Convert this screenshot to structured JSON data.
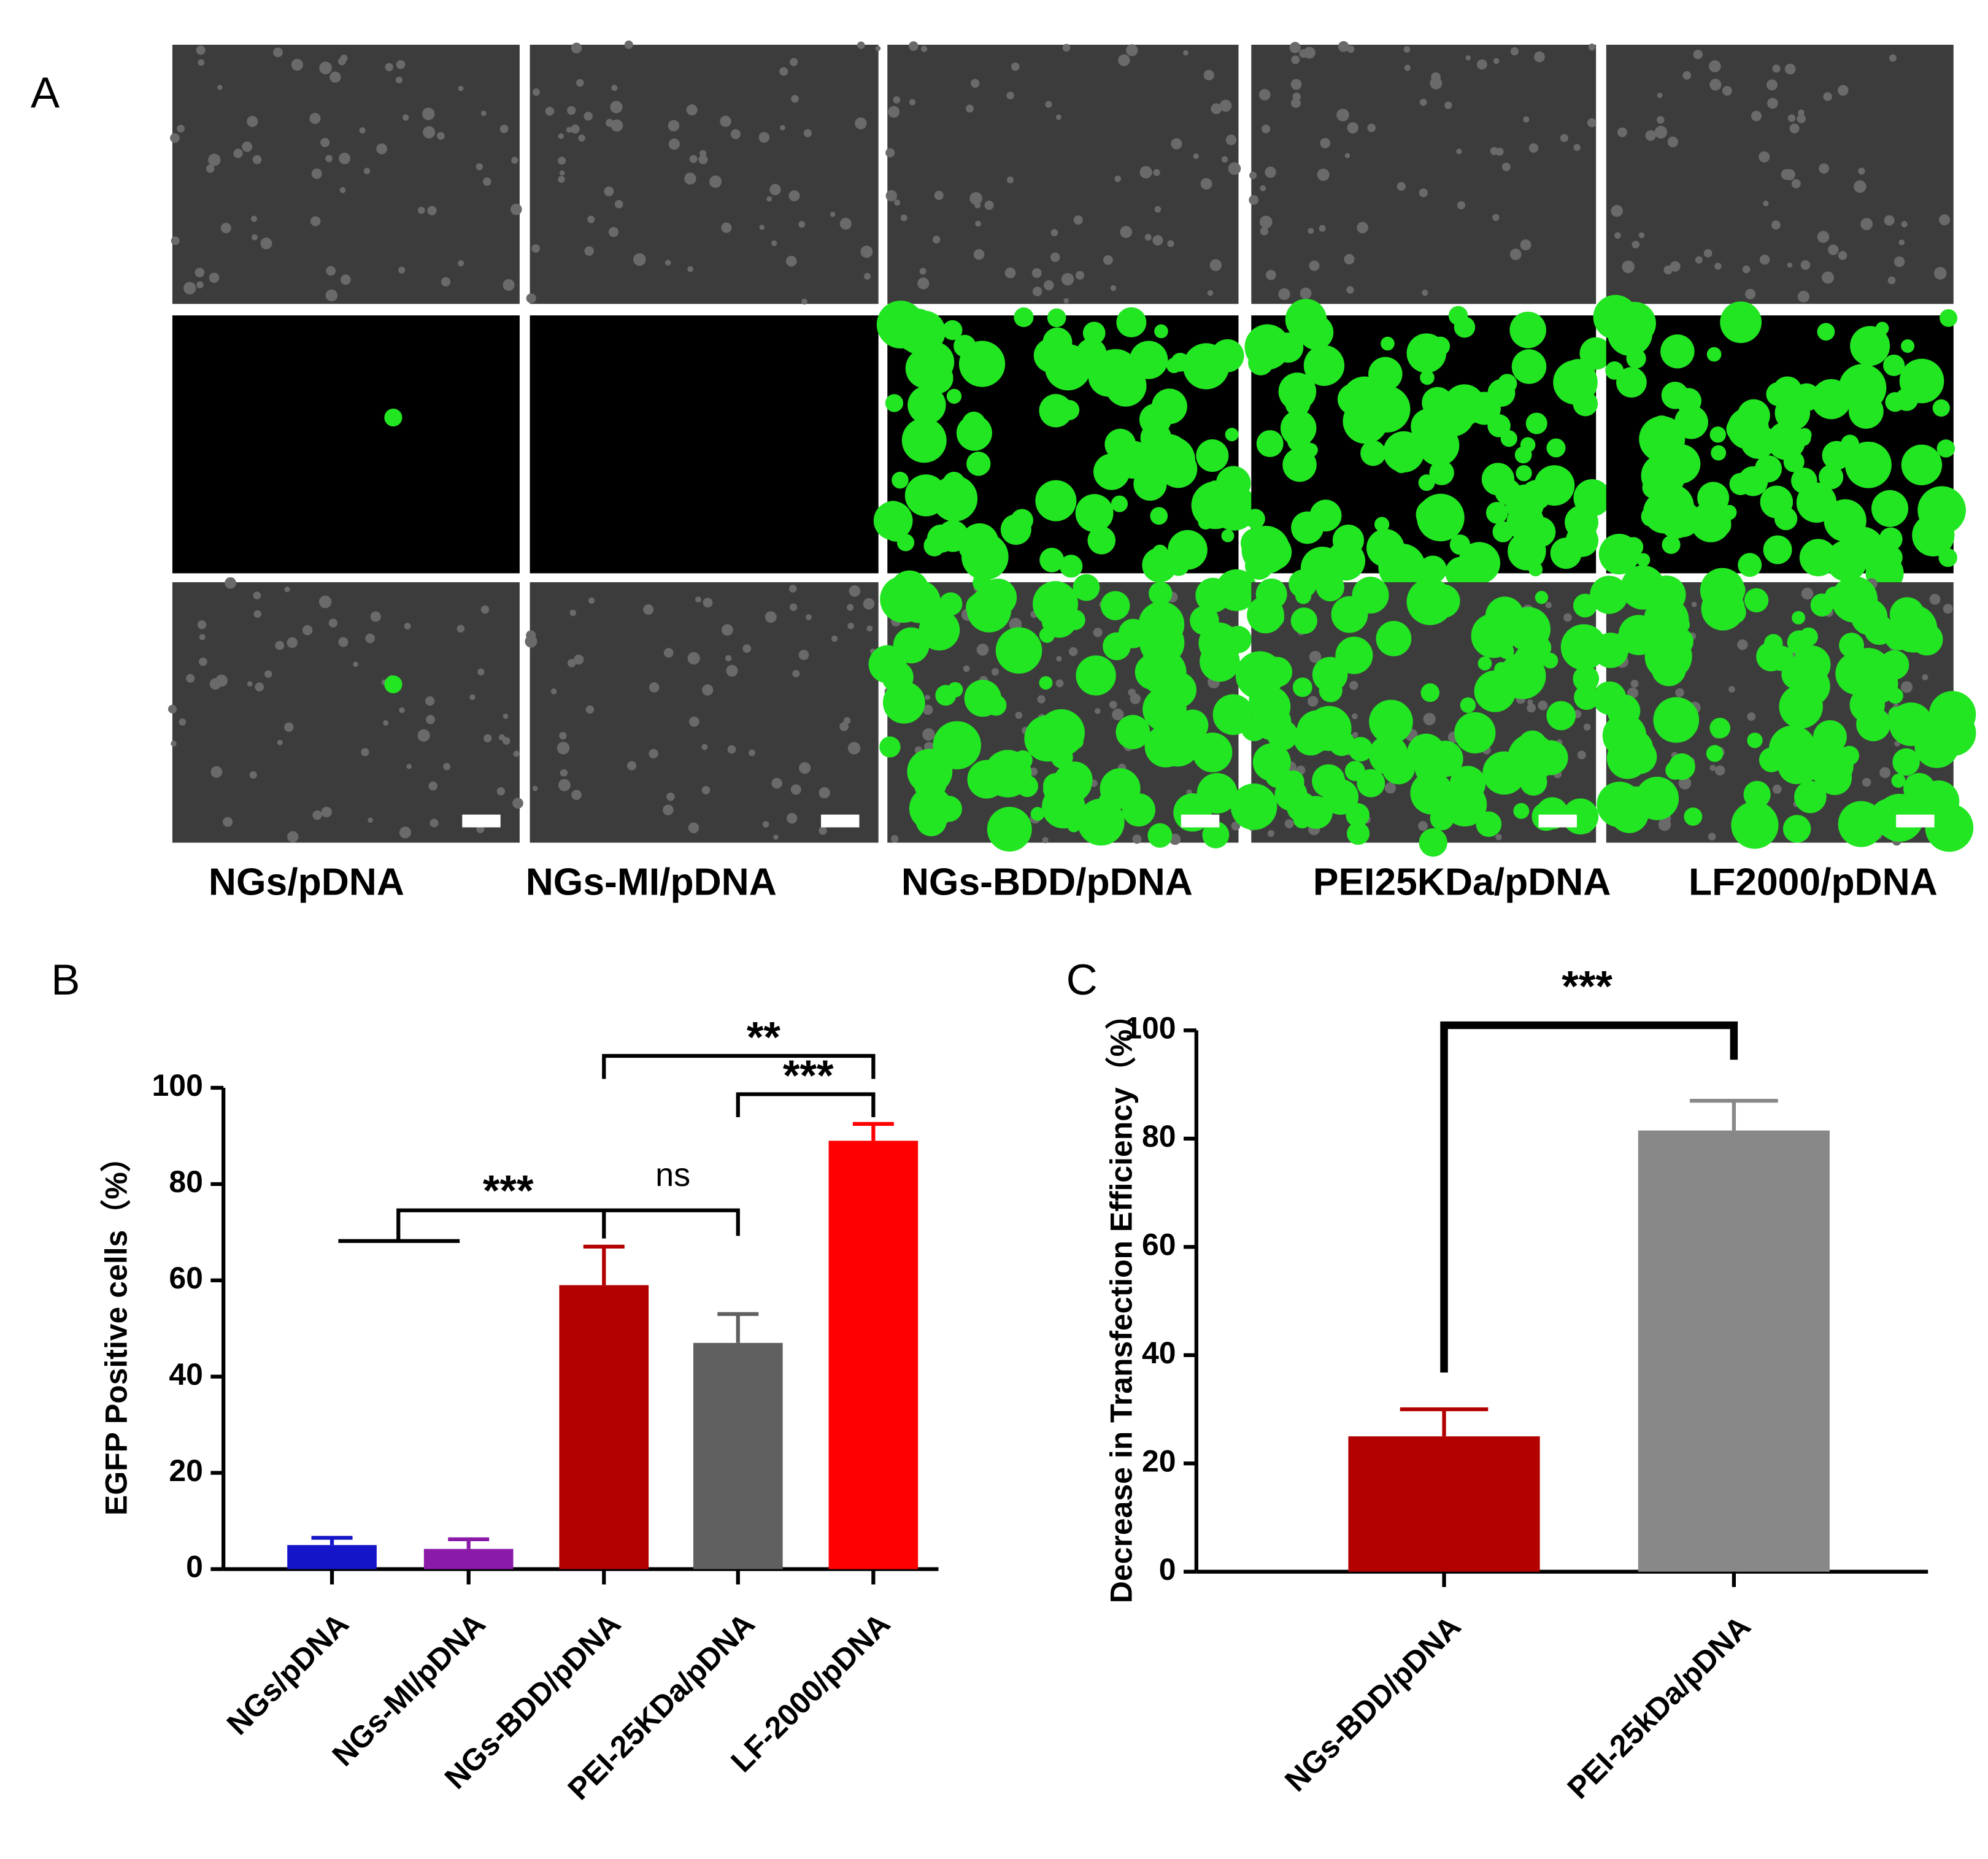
{
  "panel_a": {
    "label": "A",
    "columns": [
      "NGs/pDNA",
      "NGs-MI/pDNA",
      "NGs-BDD/pDNA",
      "PEI25KDa/pDNA",
      "LF2000/pDNA"
    ]
  },
  "chart_data": [
    {
      "type": "bar",
      "panel_label": "B",
      "ylabel": "EGFP Positive cells（%）",
      "categories": [
        "NGs/pDNA",
        "NGs-MI/pDNA",
        "NGs-BDD/pDNA",
        "PEI-25KDa/pDNA",
        "LF-2000/pDNA"
      ],
      "values": [
        5,
        4.2,
        59,
        47,
        89
      ],
      "errors": [
        1.5,
        2,
        8,
        6,
        3.5
      ],
      "colors": [
        "#1414c8",
        "#8a1aa8",
        "#b30000",
        "#606060",
        "#ff0000"
      ],
      "ylim": [
        0,
        100
      ],
      "yticks": [
        0,
        20,
        40,
        60,
        80,
        100
      ],
      "annotations": [
        "**",
        "***",
        "***",
        "ns"
      ]
    },
    {
      "type": "bar",
      "panel_label": "C",
      "ylabel": "Decrease in Transfection Efficiency（%）",
      "categories": [
        "NGs-BDD/pDNA",
        "PEI-25kDa/pDNA"
      ],
      "values": [
        25,
        81.5
      ],
      "errors": [
        5,
        5.5
      ],
      "colors": [
        "#b30000",
        "#888888"
      ],
      "ylim": [
        0,
        100
      ],
      "yticks": [
        0,
        20,
        40,
        60,
        80,
        100
      ],
      "annotations": [
        "***"
      ]
    }
  ]
}
